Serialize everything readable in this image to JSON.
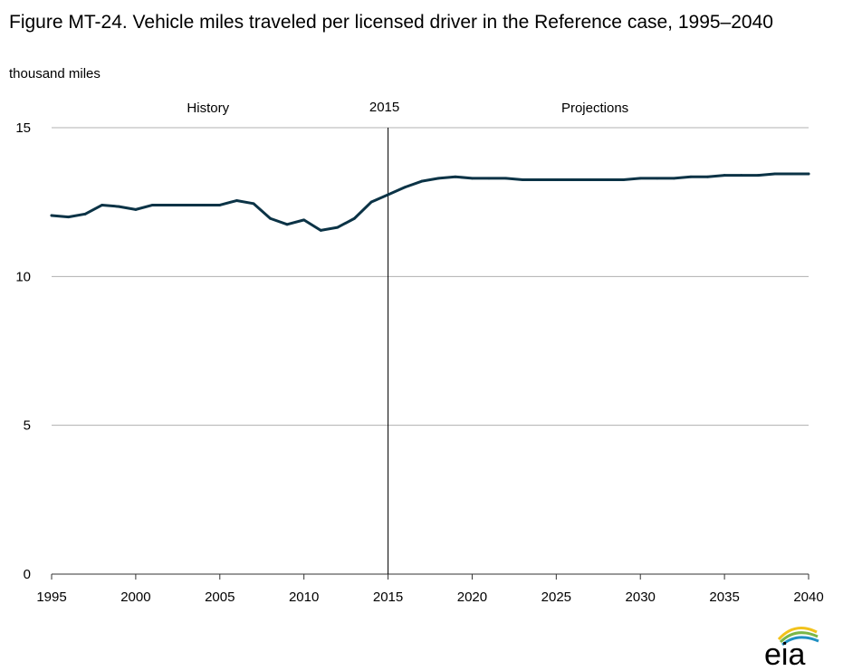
{
  "figure": {
    "title": "Figure MT-24. Vehicle miles traveled per licensed driver in the Reference case, 1995–2040",
    "units": "thousand miles"
  },
  "annotations": {
    "history": "History",
    "divider_year": "2015",
    "projections": "Projections"
  },
  "logo": {
    "text": "eia",
    "icon": "eia-logo"
  },
  "colors": {
    "series": "#0b3346",
    "grid": "#b0b0b0",
    "divider": "#000000"
  },
  "chart_data": {
    "type": "line",
    "title": "Figure MT-24. Vehicle miles traveled per licensed driver in the Reference case, 1995–2040",
    "ylabel": "thousand miles",
    "xlim": [
      1995,
      2040
    ],
    "ylim": [
      0,
      15
    ],
    "x_ticks": [
      1995,
      2000,
      2005,
      2010,
      2015,
      2020,
      2025,
      2030,
      2035,
      2040
    ],
    "y_ticks": [
      0,
      5,
      10,
      15
    ],
    "grid": "horizontal",
    "x": [
      1995,
      1996,
      1997,
      1998,
      1999,
      2000,
      2001,
      2002,
      2003,
      2004,
      2005,
      2006,
      2007,
      2008,
      2009,
      2010,
      2011,
      2012,
      2013,
      2014,
      2015,
      2016,
      2017,
      2018,
      2019,
      2020,
      2021,
      2022,
      2023,
      2024,
      2025,
      2026,
      2027,
      2028,
      2029,
      2030,
      2031,
      2032,
      2033,
      2034,
      2035,
      2036,
      2037,
      2038,
      2039,
      2040
    ],
    "series": [
      {
        "values": [
          12.05,
          12.0,
          12.1,
          12.4,
          12.35,
          12.25,
          12.4,
          12.4,
          12.4,
          12.4,
          12.4,
          12.55,
          12.45,
          11.95,
          11.75,
          11.9,
          11.55,
          11.65,
          11.95,
          12.5,
          12.75,
          13.0,
          13.2,
          13.3,
          13.35,
          13.3,
          13.3,
          13.3,
          13.25,
          13.25,
          13.25,
          13.25,
          13.25,
          13.25,
          13.25,
          13.3,
          13.3,
          13.3,
          13.35,
          13.35,
          13.4,
          13.4,
          13.4,
          13.45,
          13.45,
          13.45
        ]
      }
    ]
  }
}
